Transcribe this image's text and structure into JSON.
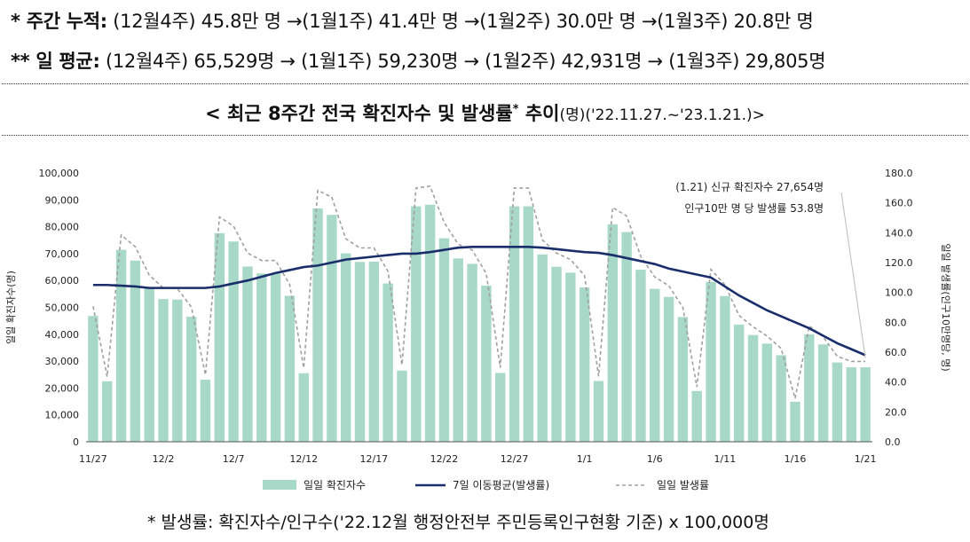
{
  "summary": {
    "weekly_label": "* 주간 누적:",
    "weekly_text": "(12월4주) 45.8만 명 →(1월1주) 41.4만 명 →(1월2주) 30.0만 명 →(1월3주) 20.8만 명",
    "daily_label": "** 일 평균:",
    "daily_text": "(12월4주) 65,529명 → (1월1주) 59,230명 → (1월2주) 42,931명 → (1월3주) 29,805명"
  },
  "title": {
    "main": "< 최근 8주간 전국 확진자수 및 발생률",
    "star": "*",
    "tail": "추이",
    "unit": "(명)('22.11.27.~'23.1.21.)>"
  },
  "footnote": "* 발생률: 확진자수/인구수('22.12월 행정안전부 주민등록인구현황 기준) x 100,000명",
  "colors": {
    "bar": "#a8d8c8",
    "moving_avg": "#1a2e6b",
    "rate": "#a0a0a0"
  },
  "chart_data": {
    "type": "bar",
    "xlabel": "",
    "ylabel": "일일 확진자수(명)",
    "y2label": "일일 발생률(인구10만명당, 명)",
    "ylim": [
      0,
      100000
    ],
    "y2lim": [
      0,
      180
    ],
    "yticks": [
      "0",
      "10,000",
      "20,000",
      "30,000",
      "40,000",
      "50,000",
      "60,000",
      "70,000",
      "80,000",
      "90,000",
      "100,000"
    ],
    "y2ticks": [
      "0.0",
      "20.0",
      "40.0",
      "60.0",
      "80.0",
      "100.0",
      "120.0",
      "140.0",
      "160.0",
      "180.0"
    ],
    "xtick_labels": [
      "11/27",
      "12/2",
      "12/7",
      "12/12",
      "12/17",
      "12/22",
      "12/27",
      "1/1",
      "1/6",
      "1/11",
      "1/16",
      "1/21"
    ],
    "xtick_indices": [
      0,
      5,
      10,
      15,
      20,
      25,
      30,
      35,
      40,
      45,
      50,
      55
    ],
    "series": [
      {
        "name": "일일 확진자수",
        "kind": "bar",
        "values": [
          46800,
          22500,
          71400,
          67400,
          57500,
          53100,
          52900,
          46500,
          23100,
          77600,
          74500,
          65200,
          62600,
          62600,
          54300,
          25500,
          86800,
          84400,
          70100,
          66900,
          67000,
          58900,
          26500,
          87600,
          88200,
          75700,
          68200,
          66200,
          58100,
          25600,
          87600,
          87600,
          69700,
          65100,
          62900,
          57400,
          22600,
          80900,
          78000,
          64000,
          56900,
          53900,
          46400,
          18900,
          59500,
          54200,
          43600,
          39700,
          36500,
          32200,
          14900,
          40000,
          36200,
          29500,
          27700,
          27700
        ]
      },
      {
        "name": "7일 이동평균(발생률)",
        "kind": "line",
        "values": [
          105,
          105,
          104.5,
          104,
          103,
          103,
          103,
          103,
          103,
          104,
          106,
          108,
          110.5,
          113,
          115,
          117,
          118,
          120,
          122,
          123,
          124,
          125,
          126,
          126,
          127,
          128.5,
          130,
          130.5,
          130.5,
          130.5,
          130.5,
          130.5,
          130,
          129,
          128,
          127,
          126.5,
          125,
          123,
          121,
          119,
          116,
          114,
          112,
          110,
          104,
          98,
          93,
          88,
          84,
          80,
          76,
          71,
          66,
          62,
          58
        ]
      },
      {
        "name": "일일 발생률",
        "kind": "line",
        "values": [
          90.7,
          43.6,
          138.5,
          130.6,
          111.6,
          102.9,
          102.6,
          90.2,
          44.8,
          150.5,
          144.5,
          126.4,
          121.4,
          121.4,
          105.3,
          49.4,
          168.4,
          163.8,
          135.9,
          129.8,
          129.8,
          114.2,
          51.5,
          169.9,
          171.1,
          146.9,
          132.3,
          128.4,
          112.7,
          49.6,
          170,
          169.9,
          135.2,
          126.4,
          122,
          111.4,
          43.8,
          156.9,
          151.2,
          124.2,
          110.4,
          104.5,
          90,
          36.7,
          115.4,
          105.1,
          84.6,
          77,
          70.8,
          62.5,
          29,
          77.6,
          70.2,
          57.2,
          53.8,
          53.8
        ]
      }
    ],
    "annotation": {
      "line1": "(1.21) 신규 확진자수 27,654명",
      "line2": "인구10만 명 당 발생률 53.8명"
    },
    "legend": [
      "일일 확진자수",
      "7일 이동평균(발생률)",
      "일일 발생률"
    ],
    "legend_position": "bottom"
  }
}
